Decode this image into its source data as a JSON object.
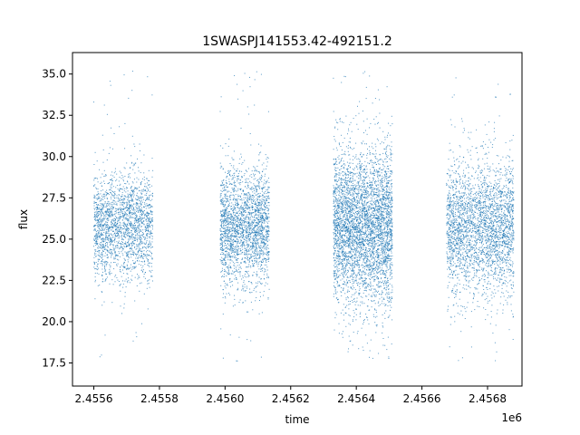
{
  "chart_data": {
    "type": "scatter",
    "title": "1SWASPJ141553.42-492151.2",
    "xlabel": "time",
    "ylabel": "flux",
    "x_offset_label": "1e6",
    "xlim": [
      2455535,
      2456905
    ],
    "ylim": [
      16.1,
      36.3
    ],
    "x_ticks": [
      2455600,
      2455800,
      2456000,
      2456200,
      2456400,
      2456600,
      2456800
    ],
    "x_tick_labels": [
      "2.4556",
      "2.4558",
      "2.4560",
      "2.4562",
      "2.4564",
      "2.4566",
      "2.4568"
    ],
    "y_ticks": [
      17.5,
      20.0,
      22.5,
      25.0,
      27.5,
      30.0,
      32.5,
      35.0
    ],
    "y_tick_labels": [
      "17.5",
      "20.0",
      "22.5",
      "25.0",
      "27.5",
      "30.0",
      "32.5",
      "35.0"
    ],
    "grid": false,
    "legend": "none",
    "marker_color": "#1f77b4",
    "series_summary": [
      {
        "x_range": [
          2455600,
          2455780
        ],
        "median_flux": 25.8,
        "flux_spread": 1.6,
        "points": 2200
      },
      {
        "x_range": [
          2455985,
          2456135
        ],
        "median_flux": 25.7,
        "flux_spread": 1.7,
        "points": 2400
      },
      {
        "x_range": [
          2456330,
          2456510
        ],
        "median_flux": 25.8,
        "flux_spread": 2.3,
        "points": 4200
      },
      {
        "x_range": [
          2456675,
          2456880
        ],
        "median_flux": 25.6,
        "flux_spread": 2.0,
        "points": 3000
      }
    ]
  }
}
